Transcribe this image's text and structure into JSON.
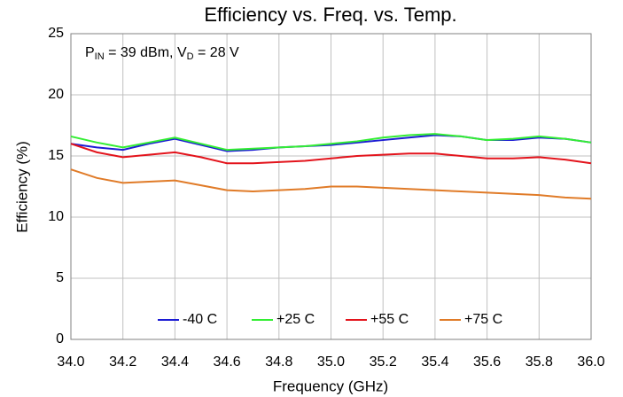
{
  "chart_data": {
    "type": "line",
    "title": "Efficiency vs. Freq. vs. Temp.",
    "xlabel": "Frequency (GHz)",
    "ylabel": "Efficiency (%)",
    "annotation": [
      {
        "text": "P"
      },
      {
        "text": "IN",
        "sub": true
      },
      {
        "text": " = 39 dBm, V"
      },
      {
        "text": "D",
        "sub": true
      },
      {
        "text": " = 28 V"
      }
    ],
    "x": [
      34.0,
      34.1,
      34.2,
      34.3,
      34.4,
      34.5,
      34.6,
      34.7,
      34.8,
      34.9,
      35.0,
      35.1,
      35.2,
      35.3,
      35.4,
      35.5,
      35.6,
      35.7,
      35.8,
      35.9,
      36.0
    ],
    "series": [
      {
        "name": "-40 C",
        "color": "#1c1cd4",
        "values": [
          16.0,
          15.7,
          15.5,
          16.0,
          16.4,
          15.9,
          15.4,
          15.5,
          15.7,
          15.8,
          15.9,
          16.1,
          16.3,
          16.5,
          16.7,
          16.6,
          16.3,
          16.3,
          16.5,
          16.4,
          16.1
        ]
      },
      {
        "name": "+25 C",
        "color": "#33ee33",
        "values": [
          16.6,
          16.1,
          15.7,
          16.1,
          16.5,
          16.0,
          15.5,
          15.6,
          15.7,
          15.8,
          16.0,
          16.2,
          16.5,
          16.7,
          16.8,
          16.6,
          16.3,
          16.4,
          16.6,
          16.4,
          16.1
        ]
      },
      {
        "name": "+55 C",
        "color": "#e3141c",
        "values": [
          16.0,
          15.3,
          14.9,
          15.1,
          15.3,
          14.9,
          14.4,
          14.4,
          14.5,
          14.6,
          14.8,
          15.0,
          15.1,
          15.2,
          15.2,
          15.0,
          14.8,
          14.8,
          14.9,
          14.7,
          14.4
        ]
      },
      {
        "name": "+75 C",
        "color": "#e07b28",
        "values": [
          13.9,
          13.2,
          12.8,
          12.9,
          13.0,
          12.6,
          12.2,
          12.1,
          12.2,
          12.3,
          12.5,
          12.5,
          12.4,
          12.3,
          12.2,
          12.1,
          12.0,
          11.9,
          11.8,
          11.6,
          11.5
        ]
      }
    ],
    "xlim": [
      34.0,
      36.0
    ],
    "xticks": [
      {
        "value": 34.0,
        "label": "34.0"
      },
      34.2,
      34.4,
      34.6,
      34.8,
      {
        "value": 35.0,
        "label": "35.0"
      },
      35.2,
      35.4,
      35.6,
      35.8,
      {
        "value": 36.0,
        "label": "36.0"
      }
    ],
    "ylim": [
      0,
      25
    ],
    "yticks": [
      0,
      5,
      10,
      15,
      20,
      25
    ],
    "grid": true,
    "legend": "bottom"
  }
}
